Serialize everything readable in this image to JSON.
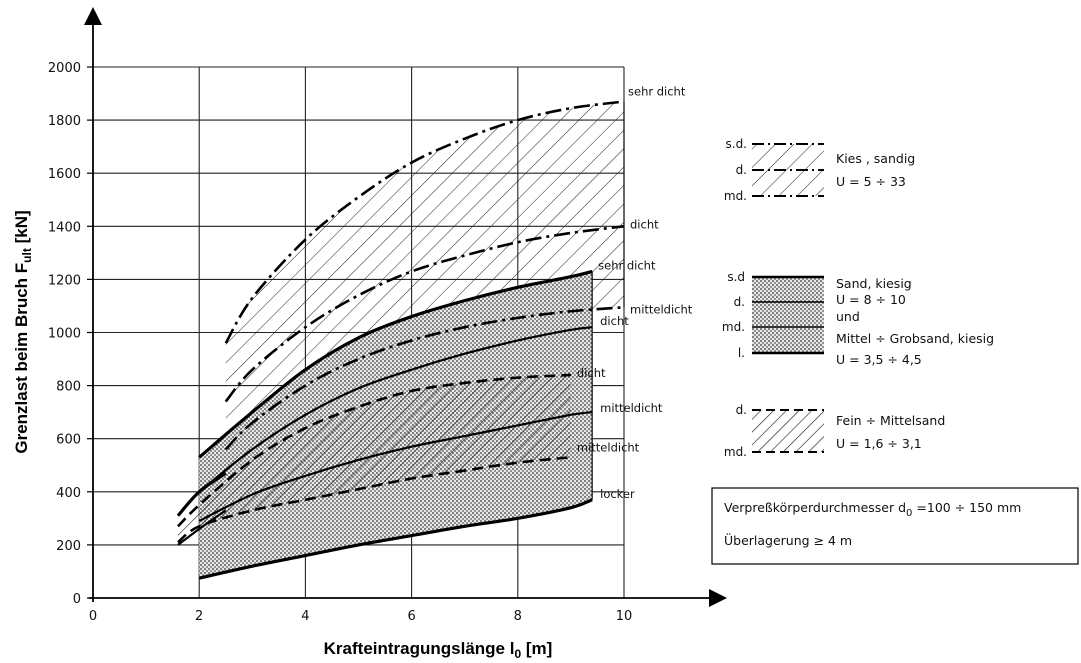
{
  "chart_data": {
    "type": "area",
    "title": "",
    "xlabel": "Krafteintragungslänge l",
    "xlabel_sub": "0",
    "xlabel_unit": " [m]",
    "ylabel": "Grenzlast beim Bruch F",
    "ylabel_sub": "ult",
    "ylabel_unit": " [kN]",
    "xlim": [
      0,
      10
    ],
    "ylim": [
      0,
      2000
    ],
    "x_ticks": [
      "0",
      "2",
      "4",
      "6",
      "8",
      "10"
    ],
    "y_ticks": [
      "0",
      "200",
      "400",
      "600",
      "800",
      "1000",
      "1200",
      "1400",
      "1600",
      "1800",
      "2000"
    ],
    "grid": true,
    "bands": [
      {
        "name": "Kies, sandig",
        "fill": "diagonal-hatch",
        "upper": {
          "label": "sehr dicht",
          "style": "dash-dot",
          "x": [
            2.5,
            3,
            4,
            5,
            6,
            7,
            8,
            9,
            10
          ],
          "y": [
            960,
            1130,
            1350,
            1510,
            1640,
            1730,
            1800,
            1845,
            1870
          ]
        },
        "middle": {
          "label": "dicht",
          "style": "dash-dot",
          "x": [
            2.5,
            3,
            4,
            5,
            6,
            7,
            8,
            9,
            10
          ],
          "y": [
            740,
            860,
            1020,
            1140,
            1230,
            1290,
            1340,
            1375,
            1400
          ]
        },
        "lower": {
          "label": "mitteldicht",
          "style": "dash-dot",
          "x": [
            2.5,
            3,
            4,
            5,
            6,
            7,
            8,
            9,
            10
          ],
          "y": [
            560,
            660,
            800,
            900,
            970,
            1020,
            1055,
            1080,
            1095
          ]
        }
      },
      {
        "name": "Sand, kiesig / Mittel ÷ Grobsand, kiesig",
        "fill": "stipple",
        "upper": {
          "label": "sehr dicht",
          "style": "solid-bold",
          "x": [
            2,
            3,
            4,
            5,
            6,
            7,
            8,
            9,
            9.4
          ],
          "y": [
            530,
            700,
            860,
            980,
            1060,
            1120,
            1170,
            1210,
            1230
          ]
        },
        "middle": {
          "label": "dicht",
          "style": "solid",
          "x": [
            2,
            3,
            4,
            5,
            6,
            7,
            8,
            9,
            9.4
          ],
          "y": [
            400,
            560,
            690,
            790,
            860,
            920,
            970,
            1010,
            1020
          ]
        },
        "lower_mid": {
          "label": "mitteldicht",
          "style": "solid",
          "x": [
            2,
            3,
            4,
            5,
            6,
            7,
            8,
            9,
            9.4
          ],
          "y": [
            290,
            390,
            460,
            520,
            570,
            610,
            650,
            690,
            700
          ]
        },
        "lower": {
          "label": "locker",
          "style": "solid-bold",
          "x": [
            2,
            3,
            4,
            5,
            6,
            7,
            8,
            9,
            9.4
          ],
          "y": [
            75,
            120,
            160,
            200,
            235,
            270,
            300,
            340,
            370
          ]
        }
      },
      {
        "name": "Fein ÷ Mittelsand",
        "fill": "diagonal-hatch-dense",
        "upper": {
          "label": "dicht",
          "style": "dashed",
          "x": [
            1.6,
            2,
            3,
            4,
            5,
            6,
            7,
            8,
            9
          ],
          "y": [
            270,
            350,
            520,
            640,
            720,
            780,
            810,
            830,
            840
          ]
        },
        "lower": {
          "label": "mitteldicht",
          "style": "dashed",
          "x": [
            1.6,
            2,
            3,
            4,
            5,
            6,
            7,
            8,
            9
          ],
          "y": [
            210,
            270,
            330,
            370,
            410,
            450,
            480,
            510,
            530
          ]
        }
      }
    ],
    "left_curves": [
      {
        "style": "solid-bold",
        "x": [
          1.6,
          2,
          2.5
        ],
        "y": [
          310,
          400,
          470
        ]
      },
      {
        "style": "solid",
        "x": [
          1.6,
          2,
          2.5
        ],
        "y": [
          200,
          260,
          330
        ]
      }
    ]
  },
  "legend": {
    "kies": {
      "keys": [
        "s.d.",
        "d.",
        "md."
      ],
      "line1": "Kies , sandig",
      "line2": "U = 5 ÷ 33"
    },
    "sand": {
      "keys": [
        "s.d",
        "d.",
        "md.",
        "l."
      ],
      "line1": "Sand, kiesig",
      "line2": "U = 8 ÷ 10",
      "line3": "und",
      "line4": "Mittel ÷ Grobsand, kiesig",
      "line5": "U = 3,5 ÷ 4,5"
    },
    "fein": {
      "keys": [
        "d.",
        "md."
      ],
      "line1": "Fein ÷ Mittelsand",
      "line2": "U = 1,6 ÷ 3,1"
    }
  },
  "note_box": {
    "line1_main": "Verpreßkörperdurchmesser d",
    "line1_sub": "0",
    "line1_rest": " =100 ÷ 150 mm",
    "line2": "Überlagerung ≥ 4 m"
  }
}
